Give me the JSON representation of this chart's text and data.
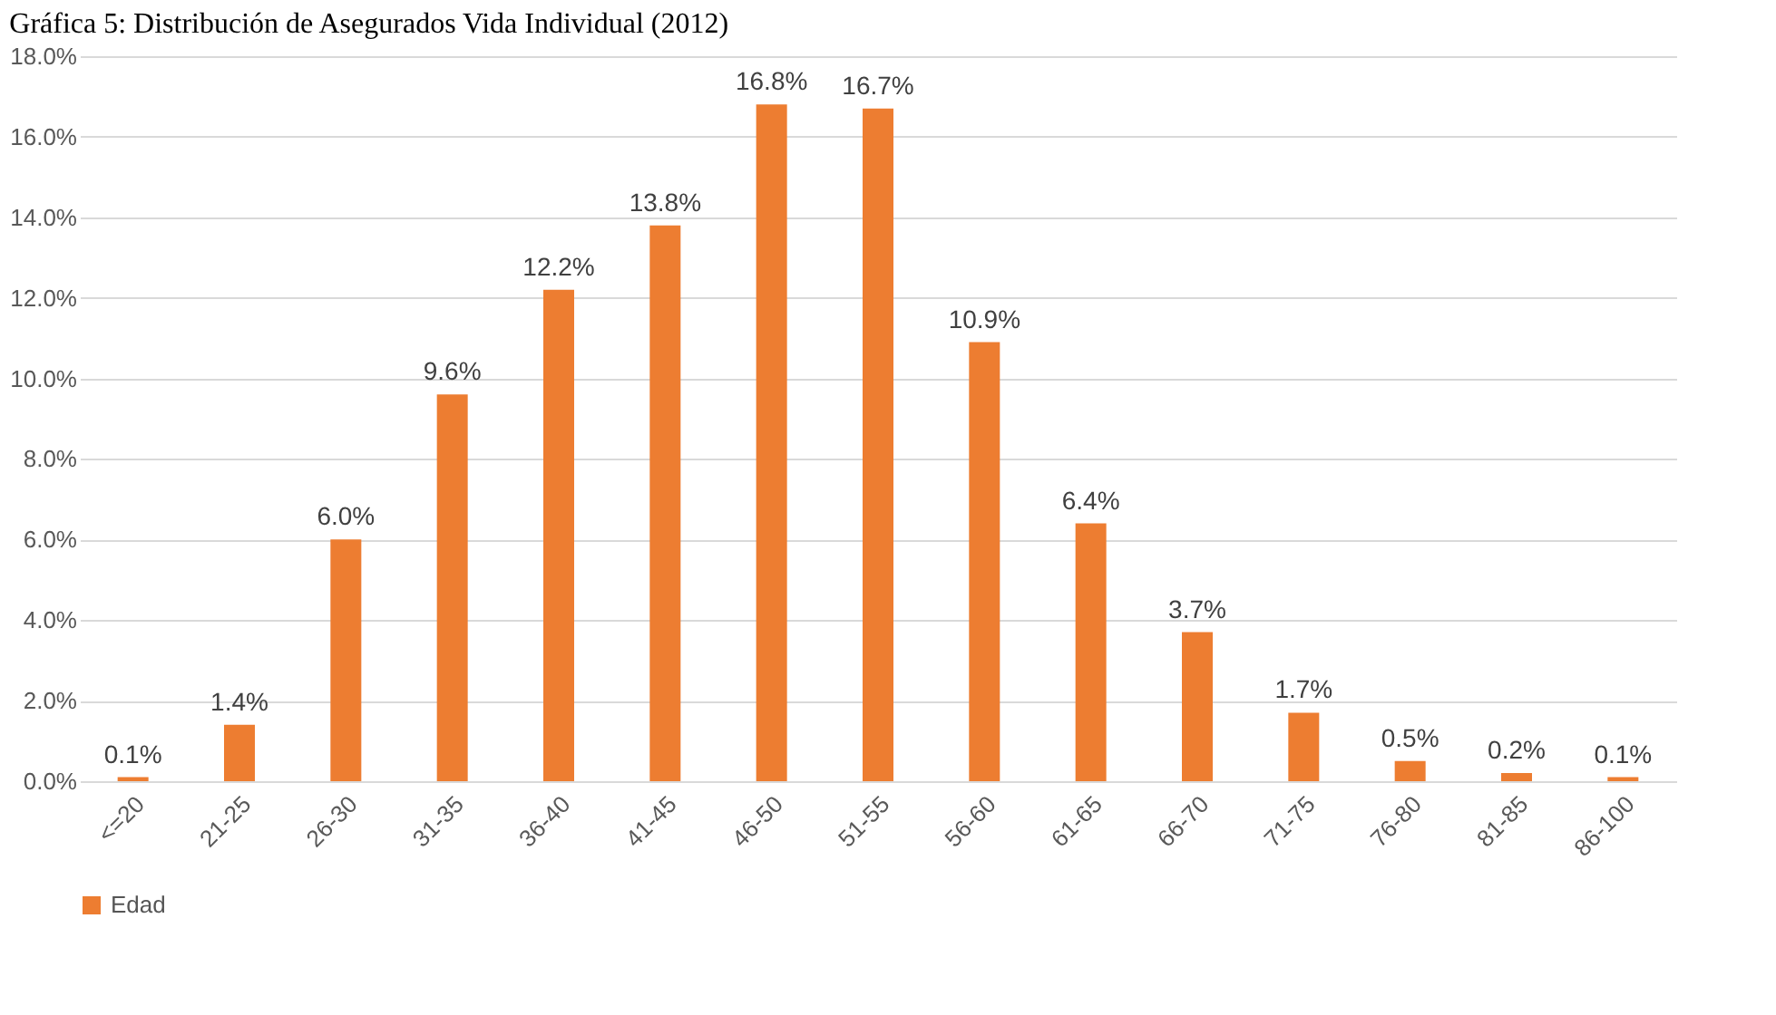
{
  "chart_data": {
    "type": "bar",
    "title": "Gráfica 5: Distribución de Asegurados  Vida Individual (2012)",
    "categories": [
      "<=20",
      "21-25",
      "26-30",
      "31-35",
      "36-40",
      "41-45",
      "46-50",
      "51-55",
      "56-60",
      "61-65",
      "66-70",
      "71-75",
      "76-80",
      "81-85",
      "86-100"
    ],
    "series": [
      {
        "name": "Edad",
        "color": "#ed7d31",
        "values": [
          0.1,
          1.4,
          6.0,
          9.6,
          12.2,
          13.8,
          16.8,
          16.7,
          10.9,
          6.4,
          3.7,
          1.7,
          0.5,
          0.2,
          0.1
        ],
        "value_labels": [
          "0.1%",
          "1.4%",
          "6.0%",
          "9.6%",
          "12.2%",
          "13.8%",
          "16.8%",
          "16.7%",
          "10.9%",
          "6.4%",
          "3.7%",
          "1.7%",
          "0.5%",
          "0.2%",
          "0.1%"
        ]
      }
    ],
    "ylim": [
      0,
      18
    ],
    "yticks": [
      {
        "value": 0,
        "label": "0.0%"
      },
      {
        "value": 2,
        "label": "2.0%"
      },
      {
        "value": 4,
        "label": "4.0%"
      },
      {
        "value": 6,
        "label": "6.0%"
      },
      {
        "value": 8,
        "label": "8.0%"
      },
      {
        "value": 10,
        "label": "10.0%"
      },
      {
        "value": 12,
        "label": "12.0%"
      },
      {
        "value": 14,
        "label": "14.0%"
      },
      {
        "value": 16,
        "label": "16.0%"
      },
      {
        "value": 18,
        "label": "18.0%"
      }
    ],
    "grid": "y",
    "legend": "bottom"
  }
}
